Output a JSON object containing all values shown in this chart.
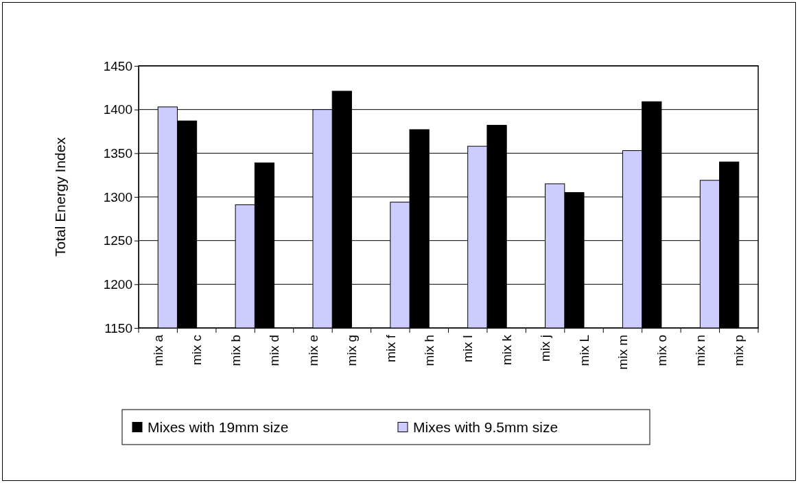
{
  "chart_data": {
    "type": "bar",
    "ylabel": "Total Energy Index",
    "categories": [
      "mix a",
      "mix c",
      "mix b",
      "mix d",
      "mix e",
      "mix g",
      "mix f",
      "mix h",
      "mix I",
      "mix k",
      "mix j",
      "mix L",
      "mix m",
      "mix o",
      "mix n",
      "mix p"
    ],
    "series": [
      {
        "name": "Mixes with 19mm size",
        "color": "#000000",
        "values": [
          null,
          1387,
          null,
          1339,
          null,
          1421,
          null,
          1377,
          null,
          1382,
          null,
          1305,
          null,
          1409,
          null,
          1340
        ]
      },
      {
        "name": "Mixes with 9.5mm size",
        "color": "#ccccff",
        "values": [
          1403,
          null,
          1291,
          null,
          1400,
          null,
          1294,
          null,
          1358,
          null,
          1315,
          null,
          1353,
          null,
          1319,
          null
        ]
      }
    ],
    "ylim": [
      1150,
      1450
    ],
    "yticks": [
      1150,
      1200,
      1250,
      1300,
      1350,
      1400,
      1450
    ],
    "grid": "y",
    "legend": "bottom"
  }
}
